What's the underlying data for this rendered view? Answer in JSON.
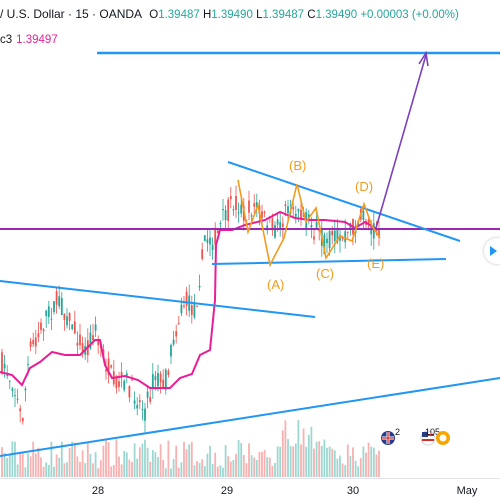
{
  "header": {
    "title": "/ U.S. Dollar · 15 · OANDA",
    "o_label": "O",
    "o_value": "1.39487",
    "h_label": "H",
    "h_value": "1.39490",
    "l_label": "L",
    "l_value": "1.39487",
    "c_label": "C",
    "c_value": "1.39490",
    "change": "+0.00003 (+0.00%)"
  },
  "indicator": {
    "name": "c3",
    "value": "1.39497"
  },
  "time_axis": {
    "labels": [
      "28",
      "29",
      "30",
      "May"
    ]
  },
  "wave_labels": [
    "(A)",
    "(B)",
    "(C)",
    "(D)",
    "(E)"
  ],
  "events": {
    "count1": "2",
    "count2": "105"
  },
  "colors": {
    "up": "#26a69a",
    "down": "#ef5350",
    "trend": "#2196f3",
    "vwap": "#e91e96",
    "wave": "#f29b1d",
    "arrow": "#7e3fbf",
    "hline": "#9c27b0"
  },
  "icons": [
    "play-arrow-icon",
    "uk-flag-icon",
    "us-flag-icon",
    "calendar-event-icon"
  ]
}
